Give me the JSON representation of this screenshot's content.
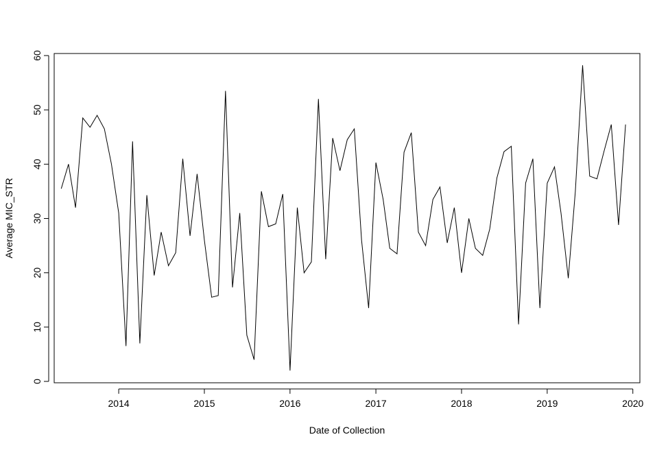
{
  "chart_data": {
    "type": "line",
    "title": "",
    "xlabel": "Date of Collection",
    "ylabel": "Average MIC_STR",
    "xlim": [
      "2013-04-01",
      "2020-01-31"
    ],
    "ylim": [
      0,
      60
    ],
    "x_ticks": [
      "2014",
      "2015",
      "2016",
      "2017",
      "2018",
      "2019",
      "2020"
    ],
    "y_ticks": [
      "0",
      "10",
      "20",
      "30",
      "40",
      "50",
      "60"
    ],
    "grid": false,
    "legend": "none",
    "line_color": "#000000",
    "series": [
      {
        "x": [
          "2013-05",
          "2013-06",
          "2013-07",
          "2013-08",
          "2013-09",
          "2013-10",
          "2013-11",
          "2013-12",
          "2014-01",
          "2014-02",
          "2014-03",
          "2014-04",
          "2014-05",
          "2014-06",
          "2014-07",
          "2014-08",
          "2014-09",
          "2014-10",
          "2014-11",
          "2014-12",
          "2015-01",
          "2015-02",
          "2015-03",
          "2015-04",
          "2015-05",
          "2015-06",
          "2015-07",
          "2015-08",
          "2015-09",
          "2015-10",
          "2015-11",
          "2015-12",
          "2016-01",
          "2016-02",
          "2016-03",
          "2016-04",
          "2016-05",
          "2016-06",
          "2016-07",
          "2016-08",
          "2016-09",
          "2016-10",
          "2016-11",
          "2016-12",
          "2017-01",
          "2017-02",
          "2017-03",
          "2017-04",
          "2017-05",
          "2017-06",
          "2017-07",
          "2017-08",
          "2017-09",
          "2017-10",
          "2017-11",
          "2017-12",
          "2018-01",
          "2018-02",
          "2018-03",
          "2018-04",
          "2018-05",
          "2018-06",
          "2018-07",
          "2018-08",
          "2018-09",
          "2018-10",
          "2018-11",
          "2018-12",
          "2019-01",
          "2019-02",
          "2019-03",
          "2019-04",
          "2019-05",
          "2019-06",
          "2019-07",
          "2019-08",
          "2019-09",
          "2019-10",
          "2019-11",
          "2019-12"
        ],
        "values": [
          35.5,
          40,
          32,
          48.5,
          46.8,
          49,
          46.5,
          40,
          31,
          6.5,
          44.2,
          7,
          34.3,
          19.5,
          27.5,
          21.3,
          23.7,
          41,
          26.8,
          38.2,
          26,
          15.5,
          15.8,
          53.5,
          17.3,
          31,
          8.5,
          4,
          35,
          28.5,
          29,
          34.5,
          2,
          32,
          20,
          22,
          52,
          22.5,
          44.8,
          38.8,
          44.5,
          46.5,
          26,
          13.5,
          40.3,
          33.5,
          24.5,
          23.5,
          42.2,
          45.8,
          27.5,
          25,
          33.5,
          35.8,
          25.5,
          32,
          20,
          30,
          24.5,
          23.2,
          28,
          37.5,
          42.3,
          43.3,
          10.5,
          36.5,
          41,
          13.5,
          36.5,
          39.5,
          31,
          19,
          35,
          58.2,
          37.8,
          37.3,
          42.5,
          47.3,
          28.8,
          47.3
        ]
      }
    ]
  }
}
